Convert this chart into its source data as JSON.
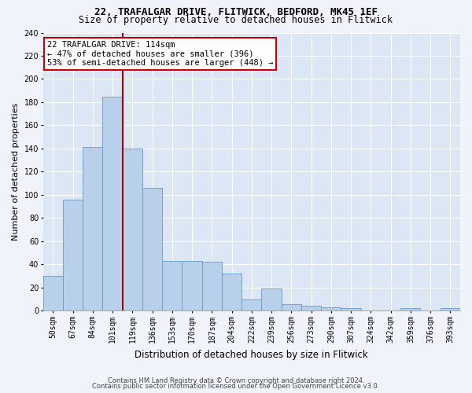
{
  "title_line1": "22, TRAFALGAR DRIVE, FLITWICK, BEDFORD, MK45 1EF",
  "title_line2": "Size of property relative to detached houses in Flitwick",
  "xlabel": "Distribution of detached houses by size in Flitwick",
  "ylabel": "Number of detached properties",
  "bin_labels": [
    "50sqm",
    "67sqm",
    "84sqm",
    "101sqm",
    "119sqm",
    "136sqm",
    "153sqm",
    "170sqm",
    "187sqm",
    "204sqm",
    "222sqm",
    "239sqm",
    "256sqm",
    "273sqm",
    "290sqm",
    "307sqm",
    "324sqm",
    "342sqm",
    "359sqm",
    "376sqm",
    "393sqm"
  ],
  "bar_heights": [
    30,
    96,
    141,
    185,
    140,
    106,
    43,
    43,
    42,
    32,
    10,
    19,
    6,
    4,
    3,
    2,
    0,
    0,
    2,
    0,
    2
  ],
  "bar_color": "#b8d0ea",
  "bar_edgecolor": "#6699cc",
  "background_color": "#dce6f5",
  "grid_color": "#ffffff",
  "vline_color": "#aa0000",
  "vline_x_bin": 3.76,
  "annotation_text_line1": "22 TRAFALGAR DRIVE: 114sqm",
  "annotation_text_line2": "← 47% of detached houses are smaller (396)",
  "annotation_text_line3": "53% of semi-detached houses are larger (448) →",
  "annotation_box_color": "#ffffff",
  "annotation_box_edgecolor": "#cc0000",
  "ylim": [
    0,
    240
  ],
  "yticks": [
    0,
    20,
    40,
    60,
    80,
    100,
    120,
    140,
    160,
    180,
    200,
    220,
    240
  ],
  "title_fontsize": 9,
  "subtitle_fontsize": 8.5,
  "ylabel_fontsize": 8,
  "xlabel_fontsize": 8.5,
  "tick_fontsize": 7,
  "annot_fontsize": 7.5,
  "footer_line1": "Contains HM Land Registry data © Crown copyright and database right 2024.",
  "footer_line2": "Contains public sector information licensed under the Open Government Licence v3.0.",
  "footer_fontsize": 6
}
